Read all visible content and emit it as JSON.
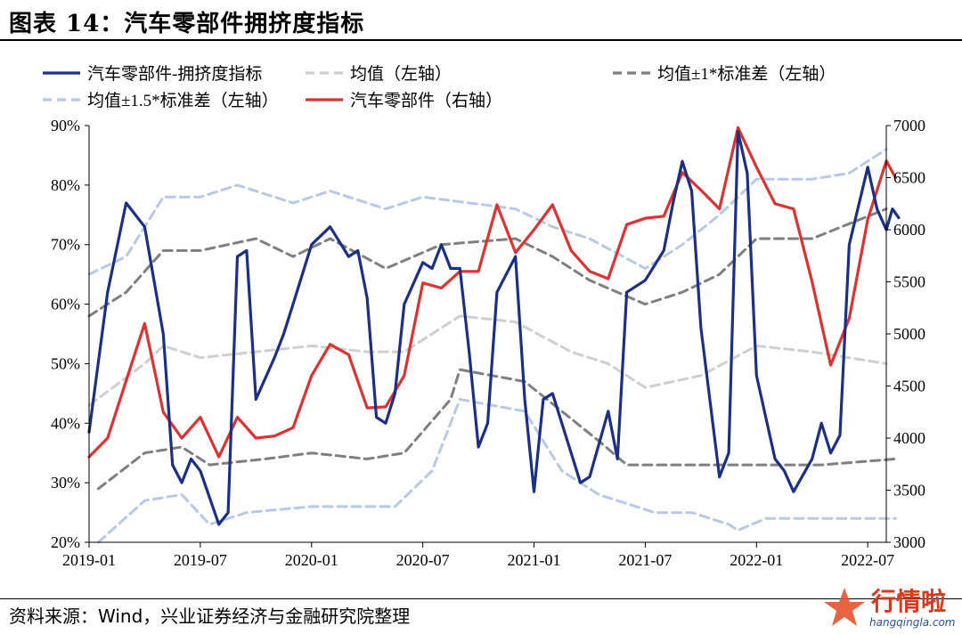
{
  "header": {
    "title": "图表 14：汽车零部件拥挤度指标"
  },
  "footer": {
    "source": "资料来源：Wind，兴业证券经济与金融研究院整理"
  },
  "watermark": {
    "text": "行情啦",
    "url": "hangqingla.com"
  },
  "colors": {
    "crowding": "#1c2f87",
    "mean": "#cfcfcf",
    "band1": "#7f7f7f",
    "band15": "#b7c9e6",
    "price": "#e03131"
  },
  "chart_data": {
    "type": "line",
    "legend_position": "top",
    "legend": [
      "汽车零部件-拥挤度指标",
      "均值（左轴）",
      "均值±1*标准差（左轴）",
      "均值±1.5*标准差（左轴）",
      "汽车零部件（右轴）"
    ],
    "x_ticks": [
      "2019-01",
      "2019-07",
      "2020-01",
      "2020-07",
      "2021-01",
      "2021-07",
      "2022-01",
      "2022-07"
    ],
    "left_axis": {
      "ylim": [
        20,
        90
      ],
      "ticks": [
        "20%",
        "30%",
        "40%",
        "50%",
        "60%",
        "70%",
        "80%",
        "90%"
      ]
    },
    "right_axis": {
      "ylim": [
        3000,
        7000
      ],
      "ticks": [
        "3000",
        "3500",
        "4000",
        "4500",
        "5000",
        "5500",
        "6000",
        "6500",
        "7000"
      ]
    },
    "x_range": [
      "2019-01",
      "2022-08"
    ],
    "series": [
      {
        "name": "汽车零部件-拥挤度指标",
        "axis": "left",
        "color": "#1c2f87",
        "width": 3.2,
        "points": [
          [
            "2019-01",
            38.5
          ],
          [
            "2019-02",
            62
          ],
          [
            "2019-03",
            77
          ],
          [
            "2019-04",
            73
          ],
          [
            "2019-05",
            55
          ],
          [
            "2019-05",
            33
          ],
          [
            "2019-06",
            30
          ],
          [
            "2019-06",
            34
          ],
          [
            "2019-07",
            32
          ],
          [
            "2019-08",
            23
          ],
          [
            "2019-08",
            25
          ],
          [
            "2019-09",
            68
          ],
          [
            "2019-09",
            69
          ],
          [
            "2019-10",
            44
          ],
          [
            "2019-11",
            51
          ],
          [
            "2019-11",
            55
          ],
          [
            "2019-12",
            60
          ],
          [
            "2020-01",
            70
          ],
          [
            "2020-02",
            73
          ],
          [
            "2020-03",
            68
          ],
          [
            "2020-03",
            69
          ],
          [
            "2020-04",
            61
          ],
          [
            "2020-04",
            41
          ],
          [
            "2020-05",
            40
          ],
          [
            "2020-05",
            45
          ],
          [
            "2020-06",
            60
          ],
          [
            "2020-07",
            67
          ],
          [
            "2020-07",
            66
          ],
          [
            "2020-08",
            70
          ],
          [
            "2020-08",
            66
          ],
          [
            "2020-09",
            66
          ],
          [
            "2020-09",
            52
          ],
          [
            "2020-10",
            36
          ],
          [
            "2020-10",
            40
          ],
          [
            "2020-11",
            62
          ],
          [
            "2020-12",
            68
          ],
          [
            "2020-12",
            44
          ],
          [
            "2021-01",
            28.5
          ],
          [
            "2021-01",
            44
          ],
          [
            "2021-02",
            45
          ],
          [
            "2021-03",
            35
          ],
          [
            "2021-03",
            30
          ],
          [
            "2021-04",
            31
          ],
          [
            "2021-05",
            42
          ],
          [
            "2021-05",
            34
          ],
          [
            "2021-06",
            62
          ],
          [
            "2021-07",
            64
          ],
          [
            "2021-08",
            69
          ],
          [
            "2021-08",
            77
          ],
          [
            "2021-09",
            84
          ],
          [
            "2021-09",
            79
          ],
          [
            "2021-10",
            56
          ],
          [
            "2021-11",
            31
          ],
          [
            "2021-11",
            35
          ],
          [
            "2021-12",
            89
          ],
          [
            "2021-12",
            82
          ],
          [
            "2022-01",
            48
          ],
          [
            "2022-02",
            34
          ],
          [
            "2022-02",
            32
          ],
          [
            "2022-03",
            28.5
          ],
          [
            "2022-04",
            34
          ],
          [
            "2022-04",
            40
          ],
          [
            "2022-05",
            35
          ],
          [
            "2022-05",
            38
          ],
          [
            "2022-06",
            70
          ],
          [
            "2022-07",
            83
          ],
          [
            "2022-07",
            76
          ],
          [
            "2022-08",
            72.5
          ],
          [
            "2022-08",
            76
          ],
          [
            "2022-08",
            74.5
          ]
        ]
      },
      {
        "name": "均值（左轴）",
        "axis": "left",
        "color": "#cfcfcf",
        "width": 3,
        "dash": "10,6",
        "points": [
          [
            "2019-01",
            43
          ],
          [
            "2019-04",
            50
          ],
          [
            "2019-05",
            53
          ],
          [
            "2019-07",
            51
          ],
          [
            "2019-10",
            52
          ],
          [
            "2020-01",
            53
          ],
          [
            "2020-04",
            52
          ],
          [
            "2020-06",
            52
          ],
          [
            "2020-08",
            56
          ],
          [
            "2020-09",
            58
          ],
          [
            "2020-12",
            57
          ],
          [
            "2021-03",
            52
          ],
          [
            "2021-05",
            50
          ],
          [
            "2021-07",
            46
          ],
          [
            "2021-10",
            48
          ],
          [
            "2022-01",
            53
          ],
          [
            "2022-04",
            52
          ],
          [
            "2022-08",
            50
          ]
        ]
      },
      {
        "name": "均值±1*标准差（左轴）",
        "axis": "left",
        "color": "#7f7f7f",
        "width": 3,
        "dash": "10,6",
        "points": [
          [
            "2019-01",
            58
          ],
          [
            "2019-03",
            62
          ],
          [
            "2019-05",
            69
          ],
          [
            "2019-07",
            69
          ],
          [
            "2019-10",
            71
          ],
          [
            "2019-12",
            68
          ],
          [
            "2020-02",
            71
          ],
          [
            "2020-05",
            66
          ],
          [
            "2020-08",
            70
          ],
          [
            "2020-12",
            71
          ],
          [
            "2021-02",
            68
          ],
          [
            "2021-04",
            64
          ],
          [
            "2021-07",
            60
          ],
          [
            "2021-09",
            62
          ],
          [
            "2021-11",
            65
          ],
          [
            "2022-01",
            71
          ],
          [
            "2022-04",
            71
          ],
          [
            "2022-08",
            76
          ],
          [
            "2019-01",
            29
          ],
          [
            "2019-04",
            35
          ],
          [
            "2019-06",
            36
          ],
          [
            "2019-07",
            33
          ],
          [
            "2019-10",
            34
          ],
          [
            "2020-01",
            35
          ],
          [
            "2020-04",
            34
          ],
          [
            "2020-06",
            35
          ],
          [
            "2020-08",
            44
          ],
          [
            "2020-09",
            49
          ],
          [
            "2020-12",
            47
          ],
          [
            "2021-02",
            42
          ],
          [
            "2021-04",
            37
          ],
          [
            "2021-06",
            33
          ],
          [
            "2021-10",
            33
          ],
          [
            "2022-01",
            33
          ],
          [
            "2022-04",
            33
          ],
          [
            "2022-08",
            34
          ]
        ]
      },
      {
        "name": "均值±1.5*标准差（左轴）",
        "axis": "left",
        "color": "#b7c9e6",
        "width": 3,
        "dash": "10,6",
        "points": [
          [
            "2019-01",
            65
          ],
          [
            "2019-03",
            68
          ],
          [
            "2019-05",
            78
          ],
          [
            "2019-07",
            78
          ],
          [
            "2019-09",
            80
          ],
          [
            "2019-12",
            77
          ],
          [
            "2020-02",
            79
          ],
          [
            "2020-05",
            76
          ],
          [
            "2020-07",
            78
          ],
          [
            "2020-12",
            76
          ],
          [
            "2021-02",
            73
          ],
          [
            "2021-04",
            71
          ],
          [
            "2021-07",
            66
          ],
          [
            "2021-09",
            70
          ],
          [
            "2021-11",
            75
          ],
          [
            "2022-01",
            81
          ],
          [
            "2022-04",
            81
          ],
          [
            "2022-06",
            82
          ],
          [
            "2022-08",
            86
          ],
          [
            "2019-01",
            20
          ],
          [
            "2019-04",
            27
          ],
          [
            "2019-06",
            28
          ],
          [
            "2019-07",
            23
          ],
          [
            "2019-09",
            25
          ],
          [
            "2020-01",
            26
          ],
          [
            "2020-05",
            26
          ],
          [
            "2020-07",
            32
          ],
          [
            "2020-09",
            44
          ],
          [
            "2020-12",
            42
          ],
          [
            "2021-02",
            32
          ],
          [
            "2021-04",
            28
          ],
          [
            "2021-07",
            25
          ],
          [
            "2021-09",
            25
          ],
          [
            "2021-11",
            23
          ],
          [
            "2021-12",
            22
          ],
          [
            "2022-01",
            24
          ],
          [
            "2022-04",
            24
          ],
          [
            "2022-08",
            24
          ]
        ]
      },
      {
        "name": "汽车零部件（右轴）",
        "axis": "right",
        "color": "#e03131",
        "width": 3.2,
        "points": [
          [
            "2019-01",
            3820
          ],
          [
            "2019-02",
            4000
          ],
          [
            "2019-03",
            4550
          ],
          [
            "2019-04",
            5100
          ],
          [
            "2019-05",
            4250
          ],
          [
            "2019-06",
            4000
          ],
          [
            "2019-07",
            4200
          ],
          [
            "2019-08",
            3820
          ],
          [
            "2019-09",
            4200
          ],
          [
            "2019-10",
            4000
          ],
          [
            "2019-11",
            4020
          ],
          [
            "2019-12",
            4100
          ],
          [
            "2020-01",
            4600
          ],
          [
            "2020-02",
            4900
          ],
          [
            "2020-03",
            4800
          ],
          [
            "2020-04",
            4290
          ],
          [
            "2020-05",
            4300
          ],
          [
            "2020-06",
            4600
          ],
          [
            "2020-07",
            5490
          ],
          [
            "2020-08",
            5440
          ],
          [
            "2020-09",
            5600
          ],
          [
            "2020-10",
            5600
          ],
          [
            "2020-11",
            6240
          ],
          [
            "2020-12",
            5780
          ],
          [
            "2021-01",
            6000
          ],
          [
            "2021-02",
            6240
          ],
          [
            "2021-03",
            5800
          ],
          [
            "2021-04",
            5600
          ],
          [
            "2021-05",
            5530
          ],
          [
            "2021-06",
            6050
          ],
          [
            "2021-07",
            6110
          ],
          [
            "2021-08",
            6130
          ],
          [
            "2021-09",
            6550
          ],
          [
            "2021-10",
            6380
          ],
          [
            "2021-11",
            6200
          ],
          [
            "2021-12",
            6980
          ],
          [
            "2022-01",
            6600
          ],
          [
            "2022-02",
            6250
          ],
          [
            "2022-03",
            6200
          ],
          [
            "2022-04",
            5500
          ],
          [
            "2022-05",
            4700
          ],
          [
            "2022-06",
            5150
          ],
          [
            "2022-07",
            6100
          ],
          [
            "2022-08",
            6660
          ],
          [
            "2022-08",
            6500
          ]
        ]
      }
    ]
  }
}
